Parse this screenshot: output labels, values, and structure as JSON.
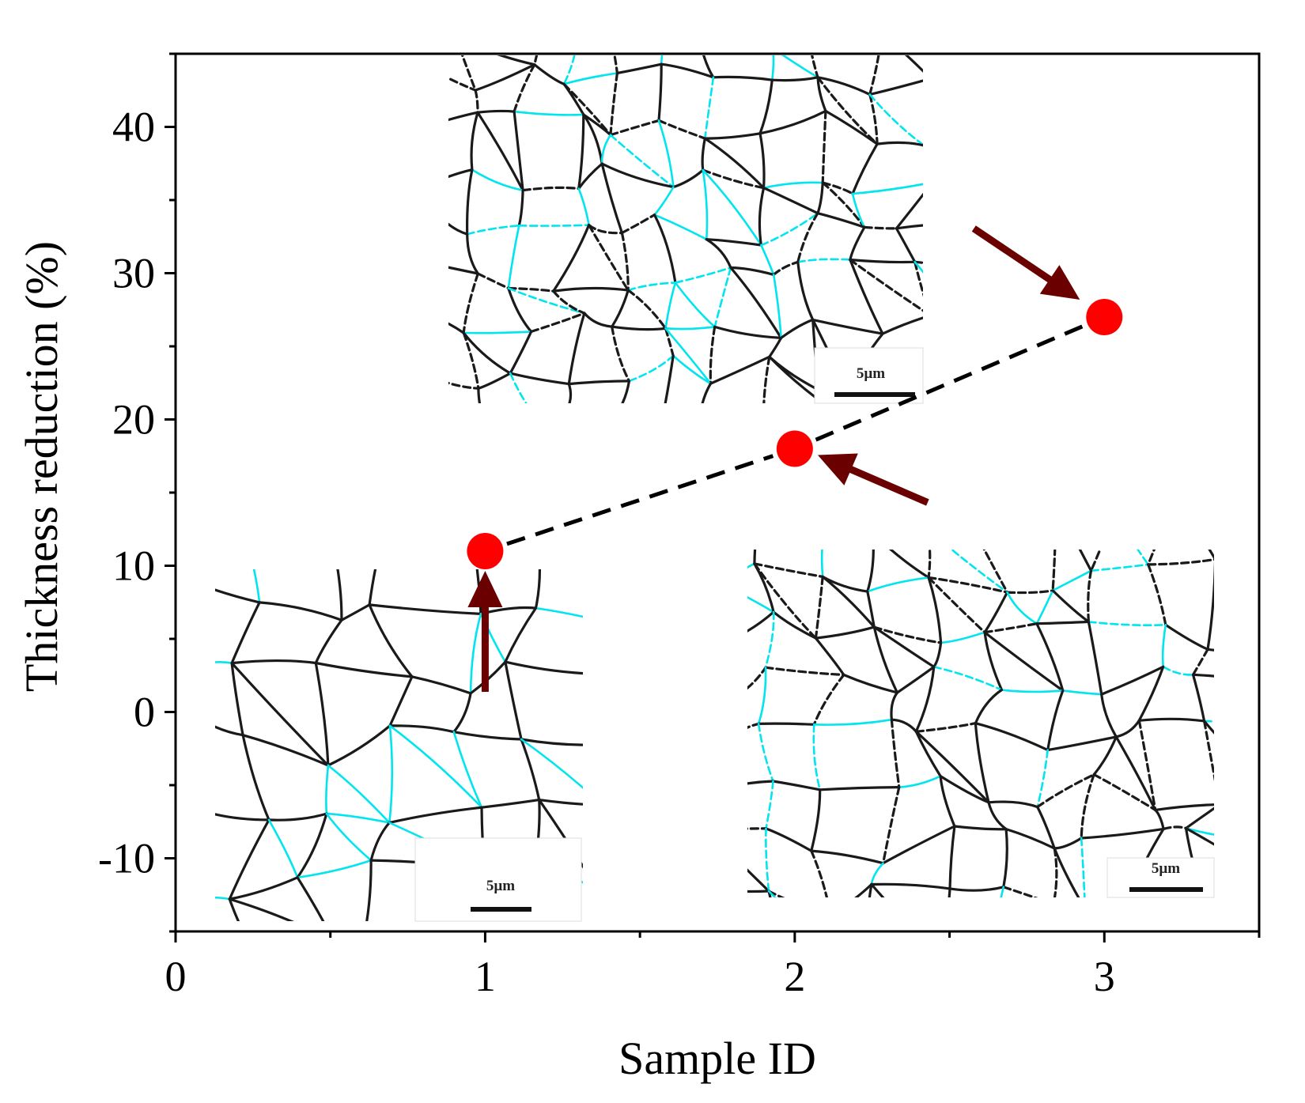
{
  "chart_data": {
    "type": "scatter",
    "xlabel": "Sample ID",
    "ylabel": "Thickness reduction (%)",
    "xlim": [
      0,
      3.5
    ],
    "ylim": [
      -15,
      45
    ],
    "x_ticks": [
      0,
      1,
      2,
      3
    ],
    "y_ticks": [
      -10,
      0,
      10,
      20,
      30,
      40
    ],
    "x_tick_labels": [
      "0",
      "1",
      "2",
      "3"
    ],
    "y_tick_labels": [
      "-10",
      "0",
      "10",
      "20",
      "30",
      "40"
    ],
    "grid": false,
    "series": [
      {
        "x": [
          1,
          2,
          3
        ],
        "y": [
          11,
          18,
          27
        ],
        "marker": "circle",
        "color": "#ff0000",
        "line": "dashed",
        "line_color": "#000000"
      }
    ],
    "insets": [
      {
        "depicts": "grain boundary map",
        "near_point": 1,
        "scale_bar": "5µm"
      },
      {
        "depicts": "grain boundary map",
        "near_point": 2,
        "scale_bar": "5µm"
      },
      {
        "depicts": "grain boundary map",
        "near_point": 3,
        "scale_bar": "5µm"
      }
    ],
    "arrow_color": "#6b0000",
    "boundary_colors": {
      "high_angle": "#1a1a1a",
      "low_angle": "#00e5ee"
    }
  }
}
